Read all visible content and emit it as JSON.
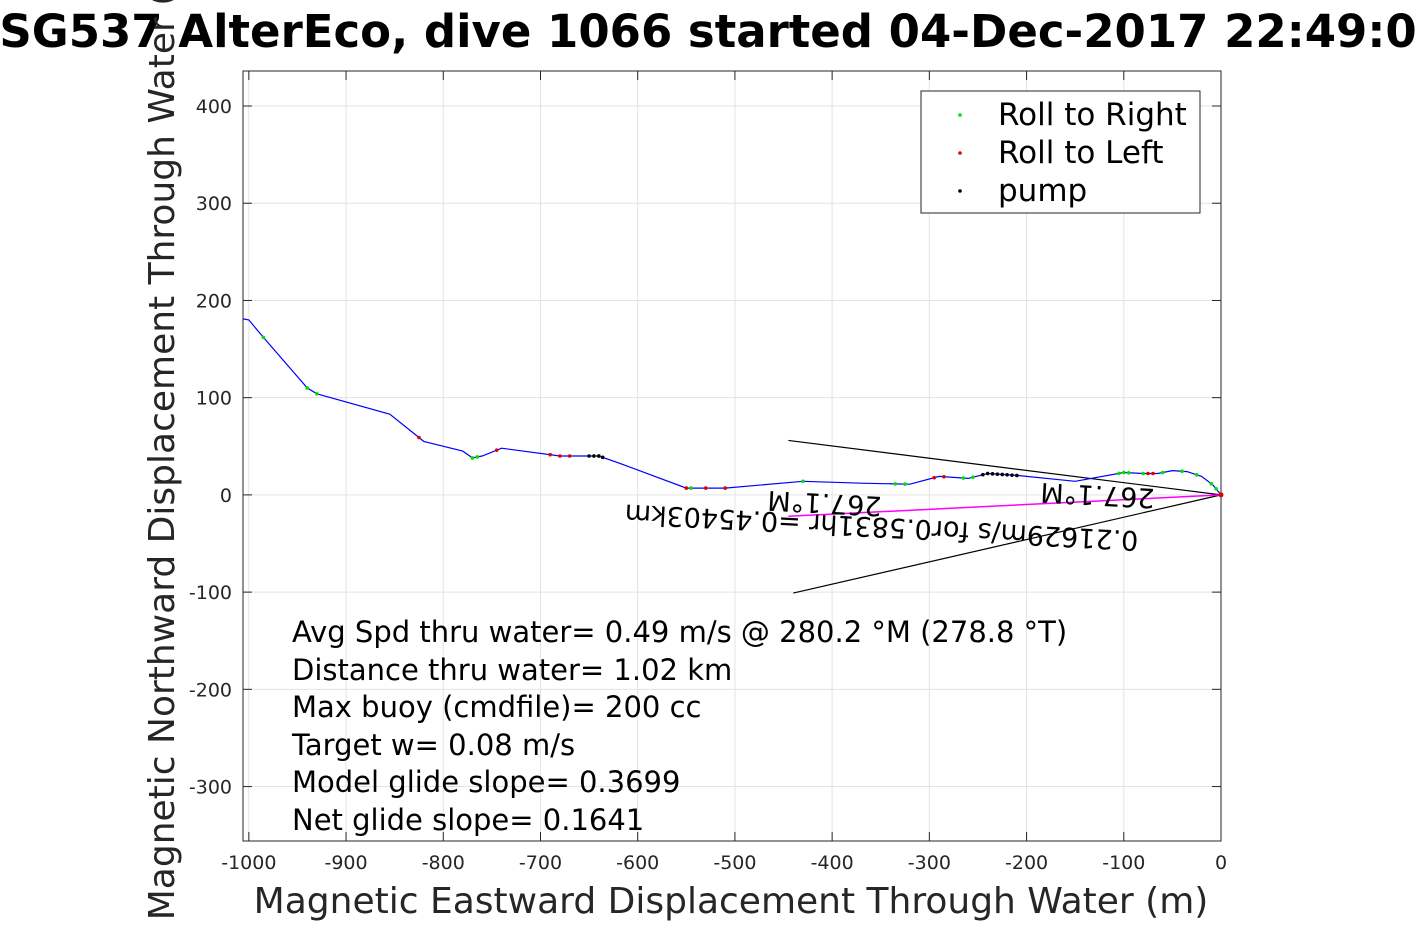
{
  "chart_data": {
    "type": "line",
    "title": "SG537 AlterEco, dive 1066 started 04-Dec-2017 22:49:0",
    "xlabel": "Magnetic Eastward Displacement Through Water (m)",
    "ylabel": "Magnetic Northward Displacement Through Water (",
    "xlim": [
      -1006,
      0
    ],
    "ylim": [
      -356,
      436
    ],
    "x_ticks": [
      -1000,
      -900,
      -800,
      -700,
      -600,
      -500,
      -400,
      -300,
      -200,
      -100,
      0
    ],
    "y_ticks": [
      -300,
      -200,
      -100,
      0,
      100,
      200,
      300,
      400
    ],
    "grid": true,
    "legend_position": "top-right",
    "legend": [
      {
        "label": "Roll to Right",
        "color": "#00e000"
      },
      {
        "label": "Roll to Left",
        "color": "#e00000"
      },
      {
        "label": "pump",
        "color": "#000000"
      }
    ],
    "track": {
      "name": "track",
      "color": "#0000ff",
      "points": [
        [
          0,
          0
        ],
        [
          -8,
          10
        ],
        [
          -20,
          19
        ],
        [
          -35,
          24
        ],
        [
          -50,
          25
        ],
        [
          -65,
          22
        ],
        [
          -80,
          22
        ],
        [
          -100,
          23
        ],
        [
          -150,
          14
        ],
        [
          -210,
          20
        ],
        [
          -240,
          22
        ],
        [
          -260,
          17
        ],
        [
          -290,
          19
        ],
        [
          -320,
          11
        ],
        [
          -370,
          12
        ],
        [
          -430,
          14
        ],
        [
          -510,
          7
        ],
        [
          -550,
          7
        ],
        [
          -620,
          33
        ],
        [
          -640,
          40
        ],
        [
          -680,
          40
        ],
        [
          -740,
          48
        ],
        [
          -760,
          40
        ],
        [
          -770,
          38
        ],
        [
          -780,
          45
        ],
        [
          -820,
          55
        ],
        [
          -855,
          83
        ],
        [
          -930,
          104
        ],
        [
          -940,
          110
        ],
        [
          -985,
          162
        ],
        [
          -1000,
          180
        ],
        [
          -1006,
          181
        ]
      ]
    },
    "dive_vector": {
      "name": "dive vector",
      "color": "#ff00ff",
      "points": [
        [
          0,
          0
        ],
        [
          -445,
          -22
        ]
      ]
    },
    "roll_right_x": [
      -5,
      -10,
      -25,
      -40,
      -60,
      -80,
      -95,
      -100,
      -105,
      -240,
      -255,
      -265,
      -285,
      -325,
      -335,
      -430,
      -545,
      -640,
      -645,
      -765,
      -770,
      -930,
      -940,
      -985
    ],
    "roll_left_x": [
      -70,
      -75,
      -285,
      -295,
      -510,
      -530,
      -550,
      -640,
      -670,
      -680,
      -690,
      -745,
      -825
    ],
    "pump_x": [
      -210,
      -215,
      -220,
      -225,
      -230,
      -235,
      -240,
      -245,
      -636,
      -640,
      -645,
      -650
    ],
    "wedge_lines": [
      [
        [
          0,
          0
        ],
        [
          -445,
          56
        ]
      ],
      [
        [
          0,
          0
        ],
        [
          -440,
          -101
        ]
      ]
    ],
    "current_label_1": "0.21629m/s for0.5831hr =0.45403km",
    "current_label_2": "267.1°M",
    "current_label_3": "267.1°M",
    "annotations": [
      "Avg Spd thru water=  0.49 m/s @ 280.2 °M (278.8 °T)",
      "Distance thru water=  1.02 km",
      "Max buoy (cmdfile)= 200 cc",
      "Target w= 0.08 m/s",
      "Model glide slope= 0.3699",
      "Net glide slope= 0.1641"
    ]
  }
}
